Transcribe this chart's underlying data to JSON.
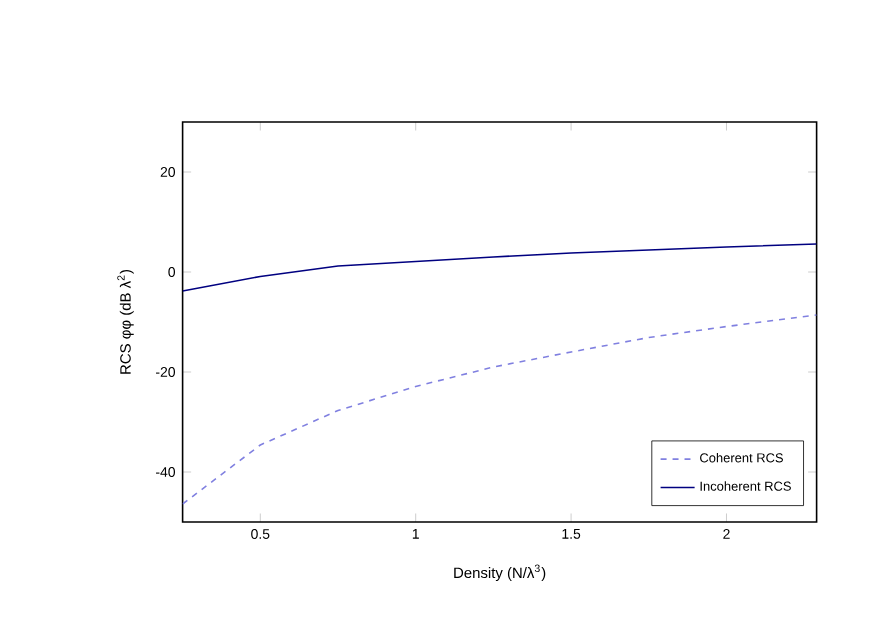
{
  "chart_data": {
    "type": "line",
    "xlabel": "Density (N/λ$^{3}$)",
    "ylabel": "RCS φφ (dB λ$^{2}$)",
    "x": [
      0.25,
      0.5,
      0.75,
      1,
      1.25,
      1.5,
      1.75,
      2,
      2.29
    ],
    "series": [
      {
        "name": "Coherent RCS",
        "color": "#8080e0",
        "line_style": "dashed",
        "values": [
          -46.4,
          -34.6,
          -27.7,
          -22.9,
          -19,
          -16,
          -13.1,
          -10.9,
          -8.6
        ]
      },
      {
        "name": "Incoherent RCS",
        "color": "#000080",
        "line_style": "solid",
        "values": [
          -3.8,
          -0.9,
          1.2,
          2.1,
          3,
          3.8,
          4.4,
          5,
          5.6
        ]
      }
    ],
    "xlim": [
      0.25,
      2.29
    ],
    "ylim": [
      -50,
      30
    ],
    "xticks": [
      0.5,
      1,
      1.5,
      2
    ],
    "yticks": [
      -40,
      -20,
      0,
      20
    ],
    "grid": false,
    "legend": "bottom right",
    "marker": "none"
  }
}
